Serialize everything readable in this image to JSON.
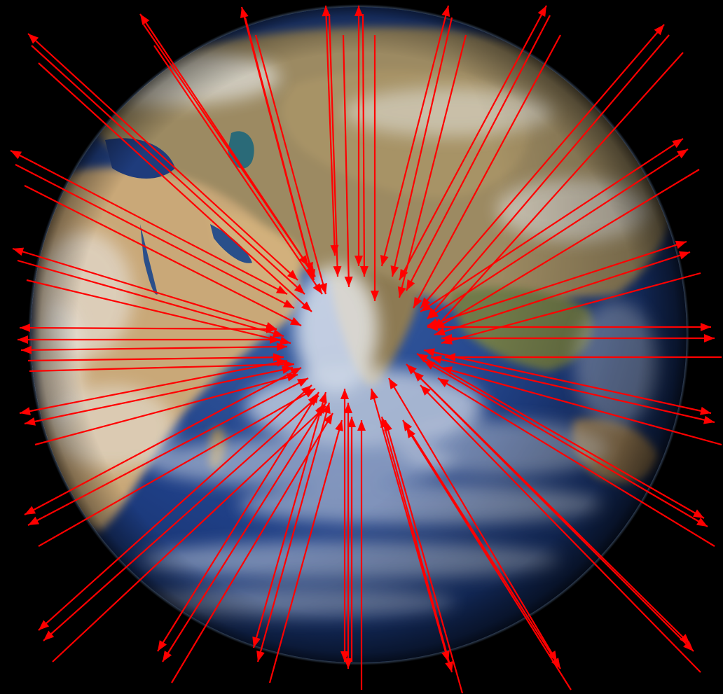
{
  "image": {
    "subject": "earth",
    "background_color": "#000000",
    "ocean_color": "#1e3f7f",
    "land_color": "#b79a6a",
    "cloud_color": "#e8eef2",
    "arrow_color": "#ff0000"
  }
}
